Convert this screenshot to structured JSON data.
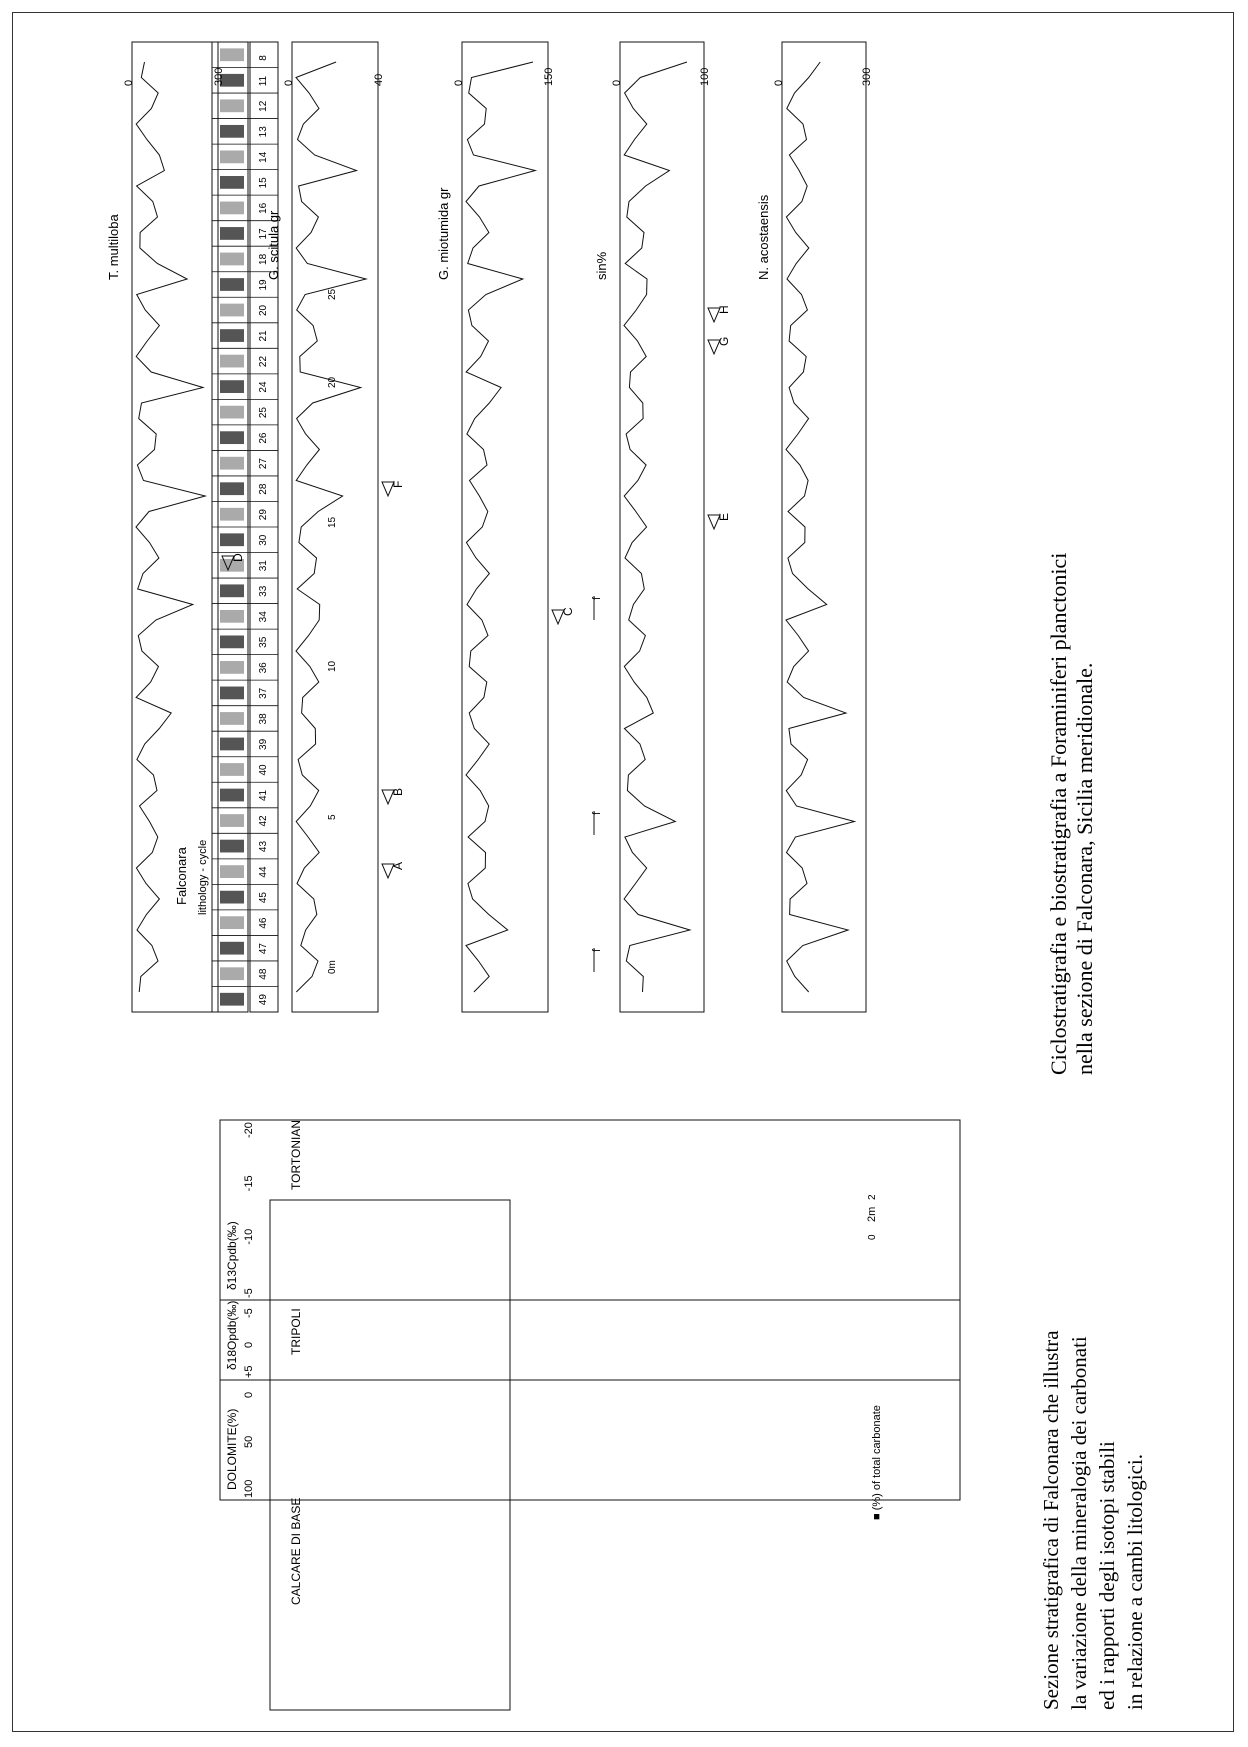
{
  "figure_right": {
    "title": "Falconara",
    "lithology_label": "lithology - cycle",
    "cycles": [
      "49",
      "48",
      "47",
      "46",
      "45",
      "44",
      "43",
      "42",
      "41",
      "40",
      "39",
      "38",
      "37",
      "36",
      "35",
      "34",
      "33",
      "31",
      "30",
      "29",
      "28",
      "27",
      "26",
      "25",
      "24",
      "22",
      "21",
      "20",
      "19",
      "18",
      "17",
      "16",
      "15",
      "14",
      "13",
      "12",
      "11",
      "8"
    ],
    "f_labels": [
      "f",
      "f",
      "f"
    ],
    "depth_ticks": [
      "0m",
      "5",
      "10",
      "15",
      "20",
      "25"
    ],
    "panels": [
      {
        "label": "N. acostaensis",
        "scale_max": "300",
        "scale_min": "0"
      },
      {
        "label": "sin%",
        "scale_max": "100",
        "scale_min": "0",
        "markers": [
          "E",
          "G",
          "H"
        ]
      },
      {
        "label": "G. miotumida gr",
        "scale_max": "150",
        "scale_min": "0",
        "markers": [
          "C"
        ]
      },
      {
        "label": "G. scitula gr",
        "scale_max": "40",
        "scale_min": "0",
        "markers": [
          "A",
          "B",
          "F"
        ]
      },
      {
        "label": "T. multiloba",
        "scale_max": "300",
        "scale_min": "0",
        "markers": [
          "D"
        ]
      }
    ],
    "caption": "Ciclostratigrafia e biostratigrafia a Foraminiferi planctonici nella sezione di Falconara, Sicilia meridionale."
  },
  "figure_left": {
    "units": [
      "CALCARE DI BASE",
      "TRIPOLI",
      "TORTONIAN"
    ],
    "scale_label": "2m",
    "scale_ticks": [
      "2",
      "0"
    ],
    "col1": {
      "label": "DOLOMITE(%)",
      "ticks": [
        "0",
        "50",
        "100"
      ]
    },
    "col2": {
      "label": "δ18Opdb(‰)",
      "ticks": [
        "-5",
        "0",
        "+5"
      ]
    },
    "col3": {
      "label": "δ13Cpdb(‰)",
      "ticks": [
        "-20",
        "-15",
        "-10",
        "-5"
      ]
    },
    "legend": "■ (%) of total carbonate",
    "caption": "Sezione stratigrafica di Falconara che illustra la variazione della mineralogia dei carbonati ed i rapporti degli isotopi stabili in relazione a cambi litologici."
  }
}
